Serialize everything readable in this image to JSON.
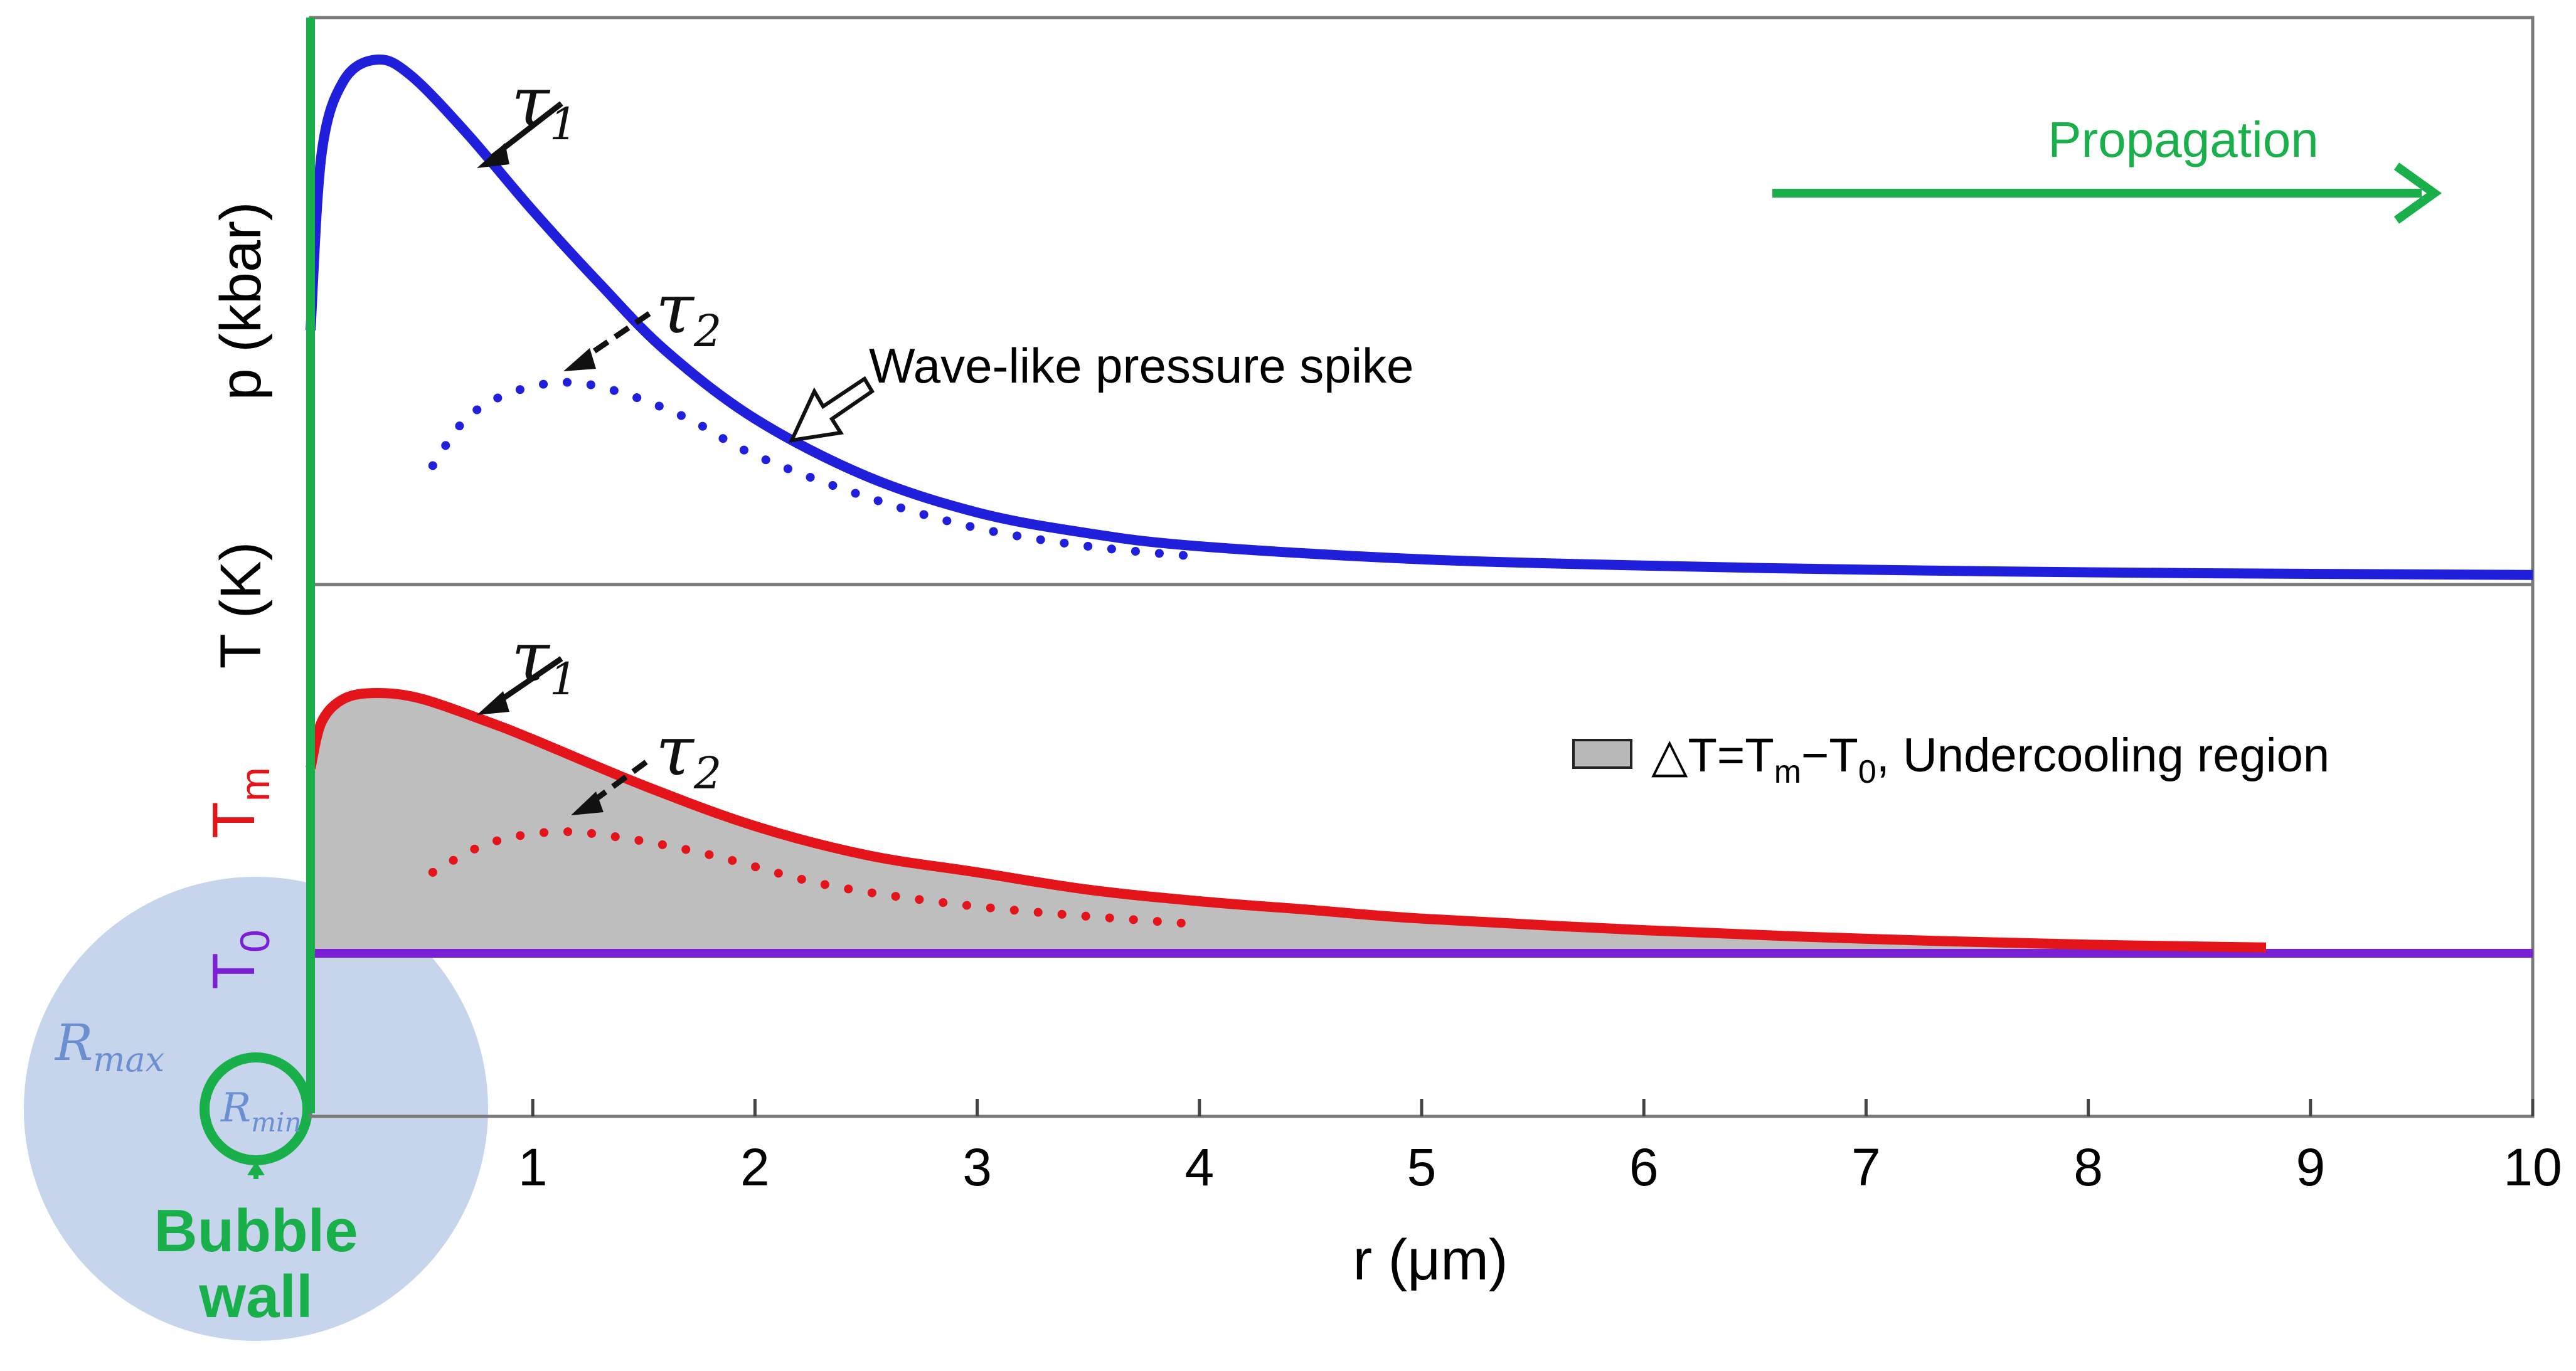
{
  "chart_data": {
    "type": "line",
    "title": "",
    "xlabel": "r (μm)",
    "xlim": [
      0,
      10
    ],
    "x_ticks": [
      "1",
      "2",
      "3",
      "4",
      "5",
      "6",
      "7",
      "8",
      "9",
      "10"
    ],
    "grid": false,
    "panels": [
      {
        "id": "pressure",
        "ylabel": "p (kbar)",
        "ylim": [
          0,
          1
        ],
        "series": [
          {
            "name": "τ1",
            "style": "solid",
            "color": "#1f1fdc",
            "points": [
              [
                0.0,
                0.48
              ],
              [
                0.05,
                0.82
              ],
              [
                0.15,
                0.96
              ],
              [
                0.3,
                1.0
              ],
              [
                0.45,
                0.97
              ],
              [
                0.7,
                0.86
              ],
              [
                1.0,
                0.71
              ],
              [
                1.3,
                0.57
              ],
              [
                1.6,
                0.44
              ],
              [
                2.0,
                0.31
              ],
              [
                2.5,
                0.2
              ],
              [
                3.0,
                0.13
              ],
              [
                3.5,
                0.09
              ],
              [
                4.0,
                0.065
              ],
              [
                5.0,
                0.04
              ],
              [
                6.0,
                0.028
              ],
              [
                7.0,
                0.02
              ],
              [
                8.0,
                0.015
              ],
              [
                9.0,
                0.012
              ],
              [
                10.0,
                0.01
              ]
            ]
          },
          {
            "name": "τ2",
            "style": "dotted",
            "color": "#1f1fdc",
            "points": [
              [
                0.55,
                0.22
              ],
              [
                0.7,
                0.31
              ],
              [
                0.9,
                0.36
              ],
              [
                1.15,
                0.38
              ],
              [
                1.4,
                0.36
              ],
              [
                1.7,
                0.31
              ],
              [
                2.0,
                0.24
              ],
              [
                2.5,
                0.16
              ],
              [
                3.0,
                0.1
              ],
              [
                3.5,
                0.065
              ],
              [
                4.0,
                0.045
              ]
            ]
          }
        ],
        "annotations": {
          "tau1": "τ",
          "tau1_sub": "1",
          "tau2": "τ",
          "tau2_sub": "2",
          "spike": "Wave-like pressure spike",
          "propagation": "Propagation"
        }
      },
      {
        "id": "temperature",
        "ylabel": "T (K)",
        "ylim": [
          0,
          1
        ],
        "tm_label": "T",
        "tm_sub": "m",
        "t0_label": "T",
        "t0_sub": "0",
        "t0_level": 0.46,
        "series": [
          {
            "name": "τ1",
            "style": "solid",
            "color": "#e3151b",
            "points": [
              [
                0.0,
                0.78
              ],
              [
                0.05,
                0.86
              ],
              [
                0.15,
                0.9
              ],
              [
                0.3,
                0.91
              ],
              [
                0.5,
                0.9
              ],
              [
                0.8,
                0.86
              ],
              [
                1.0,
                0.83
              ],
              [
                1.5,
                0.75
              ],
              [
                2.0,
                0.68
              ],
              [
                2.5,
                0.63
              ],
              [
                3.0,
                0.6
              ],
              [
                3.5,
                0.57
              ],
              [
                4.0,
                0.55
              ],
              [
                4.5,
                0.535
              ],
              [
                5.0,
                0.52
              ],
              [
                6.0,
                0.5
              ],
              [
                7.0,
                0.485
              ],
              [
                8.0,
                0.475
              ],
              [
                8.8,
                0.47
              ]
            ]
          },
          {
            "name": "τ2",
            "style": "dotted",
            "color": "#e3151b",
            "points": [
              [
                0.55,
                0.6
              ],
              [
                0.8,
                0.65
              ],
              [
                1.1,
                0.67
              ],
              [
                1.4,
                0.66
              ],
              [
                1.8,
                0.63
              ],
              [
                2.3,
                0.58
              ],
              [
                2.8,
                0.55
              ],
              [
                3.3,
                0.53
              ],
              [
                4.0,
                0.51
              ]
            ]
          },
          {
            "name": "T0",
            "style": "solid",
            "color": "#7b1fd6",
            "points": [
              [
                0.0,
                0.46
              ],
              [
                10.0,
                0.46
              ]
            ]
          }
        ],
        "legend": {
          "text_prefix": "△T=T",
          "sub1": "m",
          "mid": "−T",
          "sub2": "0",
          "suffix": ", Undercooling region",
          "swatch": "#b9b9b9"
        },
        "annotations": {
          "tau1": "τ",
          "tau1_sub": "1",
          "tau2": "τ",
          "tau2_sub": "2"
        }
      }
    ],
    "bubble": {
      "rmax": "R",
      "rmax_sub": "max",
      "rmin": "R",
      "rmin_sub": "min",
      "wall_line1": "Bubble",
      "wall_line2": "wall"
    },
    "colors": {
      "pressure": "#1f1fdc",
      "temperature": "#e3151b",
      "t0": "#7b1fd6",
      "green": "#19b04b",
      "bubble_fill": "#c6d4ec",
      "bubble_text": "#6b8fd0",
      "shade": "#bebebe"
    }
  }
}
